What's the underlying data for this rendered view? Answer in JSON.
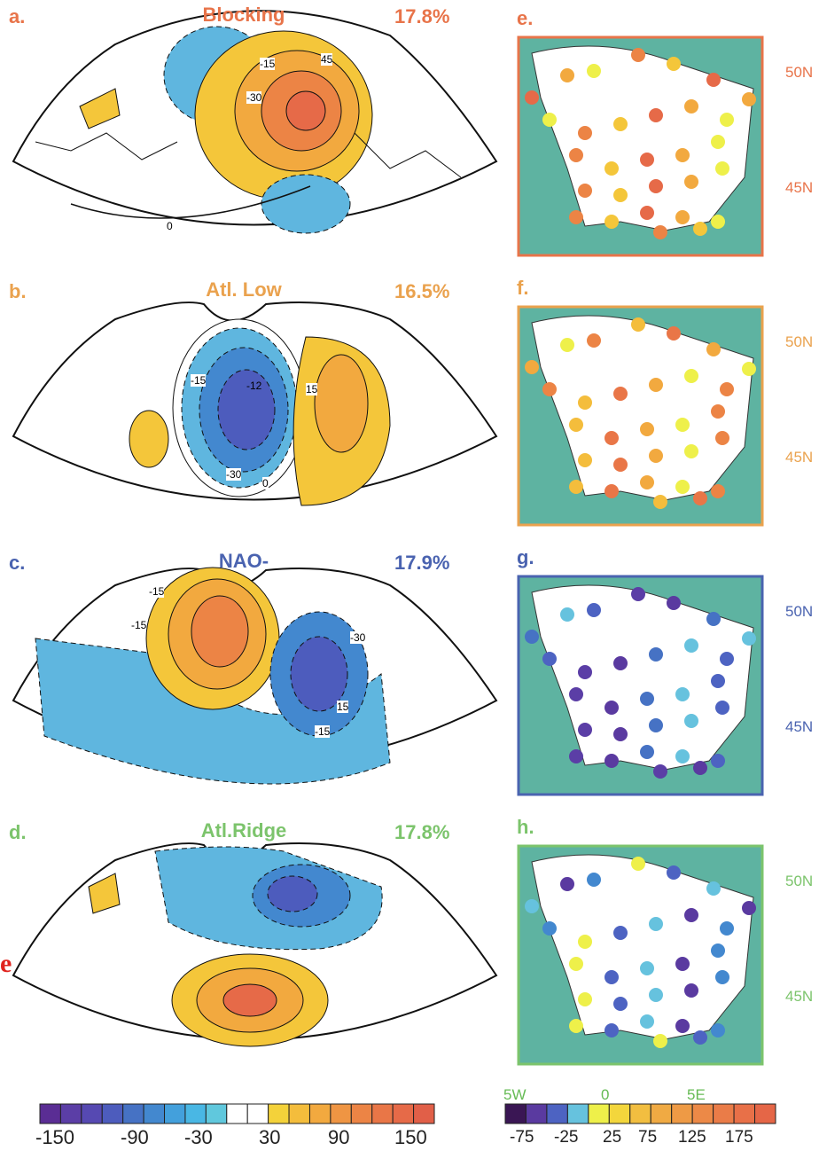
{
  "panels": [
    {
      "label": "a.",
      "title": "Blocking",
      "pct": "17.8%",
      "color": "#e8744a"
    },
    {
      "label": "b.",
      "title": "Atl. Low",
      "pct": "16.5%",
      "color": "#eaa24e"
    },
    {
      "label": "c.",
      "title": "NAO-",
      "pct": "17.9%",
      "color": "#4a63b0"
    },
    {
      "label": "d.",
      "title": "Atl.Ridge",
      "pct": "17.8%",
      "color": "#7cc46c"
    }
  ],
  "france_panels": [
    {
      "label": "e.",
      "lat_top": "50N",
      "lat_bottom": "45N",
      "color": "#e8744a"
    },
    {
      "label": "f.",
      "lat_top": "50N",
      "lat_bottom": "45N",
      "color": "#eaa24e"
    },
    {
      "label": "g.",
      "lat_top": "50N",
      "lat_bottom": "45N",
      "color": "#4a63b0"
    },
    {
      "label": "h.",
      "lat_top": "50N",
      "lat_bottom": "45N",
      "color": "#7cc46c"
    }
  ],
  "contour_labels": {
    "a": [
      "-15",
      "-30",
      "45",
      "0"
    ],
    "b": [
      "-15",
      "-30",
      "15",
      "0",
      "-12"
    ],
    "c": [
      "-15",
      "-15",
      "-30",
      "-15",
      "15"
    ]
  },
  "stray_char": "e",
  "colorbar_left": {
    "ticks": [
      "-150",
      "-90",
      "-30",
      "30",
      "90",
      "150"
    ],
    "colors": [
      "#5a2d94",
      "#5b3ea6",
      "#5649b2",
      "#4d5cbd",
      "#4672c4",
      "#4388cf",
      "#43a0dc",
      "#49b7e4",
      "#60c8dd",
      "#ffffff",
      "#ffffff",
      "#f4d23a",
      "#f4bd3c",
      "#f2a93f",
      "#ef9543",
      "#ec8445",
      "#e97647",
      "#e66a48",
      "#e15f48"
    ]
  },
  "colorbar_right": {
    "top_ticks": [
      "5W",
      "0",
      "5E"
    ],
    "ticks": [
      "-75",
      "-25",
      "25",
      "75",
      "125",
      "175"
    ],
    "colors": [
      "#3a1654",
      "#5a3aa0",
      "#4d63c2",
      "#66c2de",
      "#eef04a",
      "#f3d63c",
      "#f2be40",
      "#f0aa43",
      "#ee9a45",
      "#ec8947",
      "#ea7c48",
      "#e87048",
      "#e56647"
    ]
  }
}
